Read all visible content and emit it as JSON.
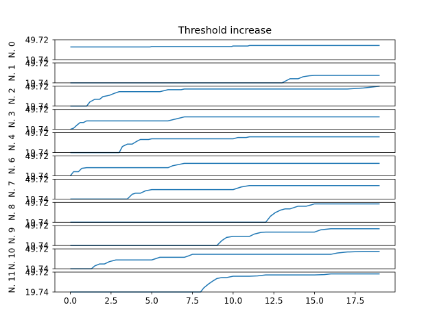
{
  "chart_data": {
    "type": "line",
    "title": "Threshold increase",
    "series_color": "#1f77b4",
    "xlim": [
      -0.95,
      19.95
    ],
    "ylim": [
      19.74,
      49.72
    ],
    "y_tick_labels": [
      "49.72",
      "19.74"
    ],
    "x_ticks": [
      0.0,
      2.5,
      5.0,
      7.5,
      10.0,
      12.5,
      15.0,
      17.5
    ],
    "x_tick_labels": [
      "0.0",
      "2.5",
      "5.0",
      "7.5",
      "10.0",
      "12.5",
      "15.0",
      "17.5"
    ],
    "panels": [
      {
        "ylabel": "N. 0",
        "x": [
          0,
          4.9,
          5.0,
          9.9,
          10.0,
          10.9,
          11.0,
          19
        ],
        "y": [
          38.9,
          38.9,
          39.5,
          39.5,
          40.3,
          40.3,
          41.0,
          41.0
        ]
      },
      {
        "ylabel": "N. 1",
        "x": [
          0,
          13.0,
          13.3,
          13.5,
          14.0,
          14.3,
          14.7,
          15.0,
          19
        ],
        "y": [
          19.74,
          19.74,
          23.5,
          26.0,
          26.0,
          29.0,
          30.5,
          31.0,
          31.0
        ]
      },
      {
        "ylabel": "N. 2",
        "x": [
          0,
          1.0,
          1.2,
          1.5,
          1.8,
          2.0,
          2.4,
          2.7,
          3.0,
          5.5,
          6.0,
          6.8,
          7.0,
          17.0,
          18.0,
          19
        ],
        "y": [
          19.74,
          19.74,
          26.0,
          30.0,
          30.0,
          34.0,
          36.0,
          39.0,
          41.5,
          41.5,
          44.5,
          44.5,
          45.5,
          45.5,
          47.0,
          49.72
        ]
      },
      {
        "ylabel": "N. 3",
        "x": [
          0,
          0.2,
          0.4,
          0.6,
          0.8,
          1.0,
          6.0,
          6.5,
          7.0,
          19
        ],
        "y": [
          19.74,
          21.5,
          26.0,
          30.0,
          30.0,
          32.5,
          32.5,
          35.5,
          38.5,
          38.5
        ]
      },
      {
        "ylabel": "N. 4",
        "x": [
          0,
          3.0,
          3.2,
          3.5,
          3.8,
          4.1,
          4.3,
          4.8,
          5.0,
          10.0,
          10.3,
          10.8,
          11.0,
          19
        ],
        "y": [
          19.74,
          19.74,
          29.0,
          32.5,
          32.5,
          37.0,
          39.5,
          39.5,
          40.5,
          40.5,
          42.5,
          42.5,
          43.5,
          43.5
        ]
      },
      {
        "ylabel": "N. 6",
        "x": [
          0,
          0.2,
          0.5,
          0.7,
          1.0,
          6.0,
          6.3,
          6.5,
          6.8,
          7.0,
          19
        ],
        "y": [
          19.74,
          26.0,
          26.0,
          31.0,
          32.0,
          32.0,
          35.0,
          36.0,
          37.5,
          38.5,
          38.5
        ]
      },
      {
        "ylabel": "N. 7",
        "x": [
          0,
          3.5,
          3.8,
          4.0,
          4.3,
          4.6,
          5.0,
          10.0,
          10.5,
          11.0,
          19
        ],
        "y": [
          19.74,
          19.74,
          27.0,
          28.5,
          28.5,
          32.0,
          34.0,
          34.0,
          38.0,
          40.0,
          40.0
        ]
      },
      {
        "ylabel": "N. 8",
        "x": [
          0,
          12.0,
          12.3,
          12.6,
          12.9,
          13.2,
          13.5,
          13.8,
          14.0,
          14.5,
          14.8,
          15.0,
          19
        ],
        "y": [
          19.74,
          19.74,
          29.0,
          34.5,
          38.0,
          40.0,
          40.0,
          42.5,
          44.0,
          44.0,
          46.0,
          47.5,
          47.5
        ]
      },
      {
        "ylabel": "N. 9",
        "x": [
          0,
          9.0,
          9.3,
          9.6,
          10.0,
          11.0,
          11.3,
          11.7,
          12.0,
          15.0,
          15.4,
          16.0,
          19
        ],
        "y": [
          19.74,
          19.74,
          27.0,
          32.0,
          33.5,
          33.5,
          37.0,
          39.5,
          40.0,
          40.0,
          43.5,
          45.0,
          45.0
        ]
      },
      {
        "ylabel": "N. 10",
        "x": [
          0,
          1.3,
          1.5,
          1.8,
          2.1,
          2.4,
          2.8,
          3.0,
          5.0,
          5.5,
          7.0,
          7.3,
          7.5,
          16.0,
          16.4,
          17.0,
          18.0,
          19
        ],
        "y": [
          19.74,
          19.74,
          24.0,
          27.0,
          27.0,
          30.5,
          33.0,
          33.0,
          33.0,
          37.0,
          37.0,
          39.5,
          41.5,
          41.5,
          43.5,
          45.0,
          46.0,
          46.0
        ]
      },
      {
        "ylabel": "N. 11",
        "x": [
          0,
          8.0,
          8.2,
          8.5,
          8.8,
          9.0,
          9.3,
          9.6,
          10.0,
          11.0,
          11.5,
          12.0,
          15.0,
          15.6,
          16.0,
          19
        ],
        "y": [
          19.74,
          19.74,
          26.0,
          32.0,
          37.0,
          40.0,
          41.5,
          41.5,
          43.5,
          43.5,
          44.0,
          45.5,
          45.5,
          46.0,
          47.0,
          47.0
        ]
      }
    ]
  }
}
